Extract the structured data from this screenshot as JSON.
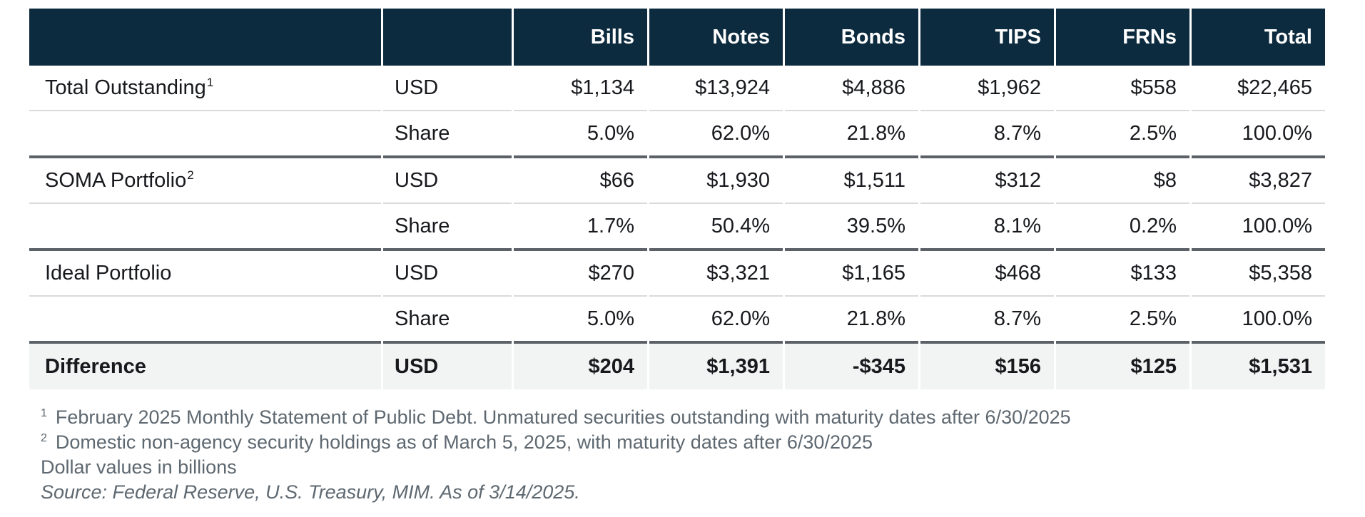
{
  "table": {
    "columns": [
      "",
      "",
      "Bills",
      "Notes",
      "Bonds",
      "TIPS",
      "FRNs",
      "Total"
    ],
    "rows": [
      {
        "label": "Total Outstanding",
        "label_sup": "1",
        "unit": "USD",
        "values": [
          "$1,134",
          "$13,924",
          "$4,886",
          "$1,962",
          "$558",
          "$22,465"
        ]
      },
      {
        "label": "",
        "unit": "Share",
        "values": [
          "5.0%",
          "62.0%",
          "21.8%",
          "8.7%",
          "2.5%",
          "100.0%"
        ]
      },
      {
        "label": "SOMA Portfolio",
        "label_sup": "2",
        "unit": "USD",
        "values": [
          "$66",
          "$1,930",
          "$1,511",
          "$312",
          "$8",
          "$3,827"
        ]
      },
      {
        "label": "",
        "unit": "Share",
        "values": [
          "1.7%",
          "50.4%",
          "39.5%",
          "8.1%",
          "0.2%",
          "100.0%"
        ]
      },
      {
        "label": "Ideal Portfolio",
        "unit": "USD",
        "values": [
          "$270",
          "$3,321",
          "$1,165",
          "$468",
          "$133",
          "$5,358"
        ]
      },
      {
        "label": "",
        "unit": "Share",
        "values": [
          "5.0%",
          "62.0%",
          "21.8%",
          "8.7%",
          "2.5%",
          "100.0%"
        ]
      },
      {
        "label": "Difference",
        "unit": "USD",
        "emphasis": true,
        "values": [
          "$204",
          "$1,391",
          "-$345",
          "$156",
          "$125",
          "$1,531"
        ]
      }
    ]
  },
  "footnotes": [
    {
      "sup": "1",
      "text": "February 2025 Monthly Statement of Public Debt. Unmatured securities outstanding with maturity dates after 6/30/2025"
    },
    {
      "sup": "2",
      "text": "Domestic non-agency security holdings as of March 5, 2025, with maturity dates after 6/30/2025"
    },
    {
      "text": "Dollar values in billions"
    },
    {
      "text": "Source: Federal Reserve, U.S. Treasury, MIM. As of 3/14/2025.",
      "italic": true
    }
  ],
  "colors": {
    "header_bg": "#0d2b3e",
    "header_text": "#ffffff",
    "thin_divider": "#d9dadb",
    "thick_divider": "#5b6167",
    "difference_row_bg": "#f2f3f3",
    "footnote_text": "#5e6870",
    "body_text": "#17191d"
  }
}
